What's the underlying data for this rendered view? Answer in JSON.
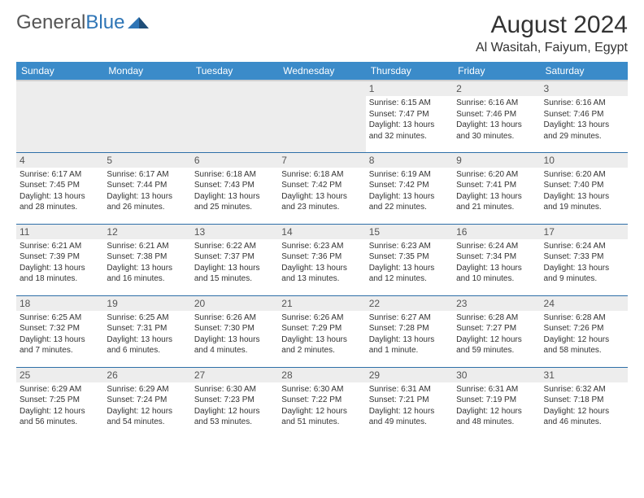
{
  "logo": {
    "part1": "General",
    "part2": "Blue"
  },
  "title": "August 2024",
  "location": "Al Wasitah, Faiyum, Egypt",
  "colors": {
    "header_bg": "#3b8bc9",
    "header_text": "#ffffff",
    "row_divider": "#2e6fa8",
    "daynum_bg": "#ededed",
    "logo_blue": "#2e75b6"
  },
  "weekdays": [
    "Sunday",
    "Monday",
    "Tuesday",
    "Wednesday",
    "Thursday",
    "Friday",
    "Saturday"
  ],
  "weeks": [
    [
      null,
      null,
      null,
      null,
      {
        "n": "1",
        "sr": "6:15 AM",
        "ss": "7:47 PM",
        "dl": "13 hours and 32 minutes."
      },
      {
        "n": "2",
        "sr": "6:16 AM",
        "ss": "7:46 PM",
        "dl": "13 hours and 30 minutes."
      },
      {
        "n": "3",
        "sr": "6:16 AM",
        "ss": "7:46 PM",
        "dl": "13 hours and 29 minutes."
      }
    ],
    [
      {
        "n": "4",
        "sr": "6:17 AM",
        "ss": "7:45 PM",
        "dl": "13 hours and 28 minutes."
      },
      {
        "n": "5",
        "sr": "6:17 AM",
        "ss": "7:44 PM",
        "dl": "13 hours and 26 minutes."
      },
      {
        "n": "6",
        "sr": "6:18 AM",
        "ss": "7:43 PM",
        "dl": "13 hours and 25 minutes."
      },
      {
        "n": "7",
        "sr": "6:18 AM",
        "ss": "7:42 PM",
        "dl": "13 hours and 23 minutes."
      },
      {
        "n": "8",
        "sr": "6:19 AM",
        "ss": "7:42 PM",
        "dl": "13 hours and 22 minutes."
      },
      {
        "n": "9",
        "sr": "6:20 AM",
        "ss": "7:41 PM",
        "dl": "13 hours and 21 minutes."
      },
      {
        "n": "10",
        "sr": "6:20 AM",
        "ss": "7:40 PM",
        "dl": "13 hours and 19 minutes."
      }
    ],
    [
      {
        "n": "11",
        "sr": "6:21 AM",
        "ss": "7:39 PM",
        "dl": "13 hours and 18 minutes."
      },
      {
        "n": "12",
        "sr": "6:21 AM",
        "ss": "7:38 PM",
        "dl": "13 hours and 16 minutes."
      },
      {
        "n": "13",
        "sr": "6:22 AM",
        "ss": "7:37 PM",
        "dl": "13 hours and 15 minutes."
      },
      {
        "n": "14",
        "sr": "6:23 AM",
        "ss": "7:36 PM",
        "dl": "13 hours and 13 minutes."
      },
      {
        "n": "15",
        "sr": "6:23 AM",
        "ss": "7:35 PM",
        "dl": "13 hours and 12 minutes."
      },
      {
        "n": "16",
        "sr": "6:24 AM",
        "ss": "7:34 PM",
        "dl": "13 hours and 10 minutes."
      },
      {
        "n": "17",
        "sr": "6:24 AM",
        "ss": "7:33 PM",
        "dl": "13 hours and 9 minutes."
      }
    ],
    [
      {
        "n": "18",
        "sr": "6:25 AM",
        "ss": "7:32 PM",
        "dl": "13 hours and 7 minutes."
      },
      {
        "n": "19",
        "sr": "6:25 AM",
        "ss": "7:31 PM",
        "dl": "13 hours and 6 minutes."
      },
      {
        "n": "20",
        "sr": "6:26 AM",
        "ss": "7:30 PM",
        "dl": "13 hours and 4 minutes."
      },
      {
        "n": "21",
        "sr": "6:26 AM",
        "ss": "7:29 PM",
        "dl": "13 hours and 2 minutes."
      },
      {
        "n": "22",
        "sr": "6:27 AM",
        "ss": "7:28 PM",
        "dl": "13 hours and 1 minute."
      },
      {
        "n": "23",
        "sr": "6:28 AM",
        "ss": "7:27 PM",
        "dl": "12 hours and 59 minutes."
      },
      {
        "n": "24",
        "sr": "6:28 AM",
        "ss": "7:26 PM",
        "dl": "12 hours and 58 minutes."
      }
    ],
    [
      {
        "n": "25",
        "sr": "6:29 AM",
        "ss": "7:25 PM",
        "dl": "12 hours and 56 minutes."
      },
      {
        "n": "26",
        "sr": "6:29 AM",
        "ss": "7:24 PM",
        "dl": "12 hours and 54 minutes."
      },
      {
        "n": "27",
        "sr": "6:30 AM",
        "ss": "7:23 PM",
        "dl": "12 hours and 53 minutes."
      },
      {
        "n": "28",
        "sr": "6:30 AM",
        "ss": "7:22 PM",
        "dl": "12 hours and 51 minutes."
      },
      {
        "n": "29",
        "sr": "6:31 AM",
        "ss": "7:21 PM",
        "dl": "12 hours and 49 minutes."
      },
      {
        "n": "30",
        "sr": "6:31 AM",
        "ss": "7:19 PM",
        "dl": "12 hours and 48 minutes."
      },
      {
        "n": "31",
        "sr": "6:32 AM",
        "ss": "7:18 PM",
        "dl": "12 hours and 46 minutes."
      }
    ]
  ],
  "labels": {
    "sunrise": "Sunrise:",
    "sunset": "Sunset:",
    "daylight": "Daylight:"
  }
}
